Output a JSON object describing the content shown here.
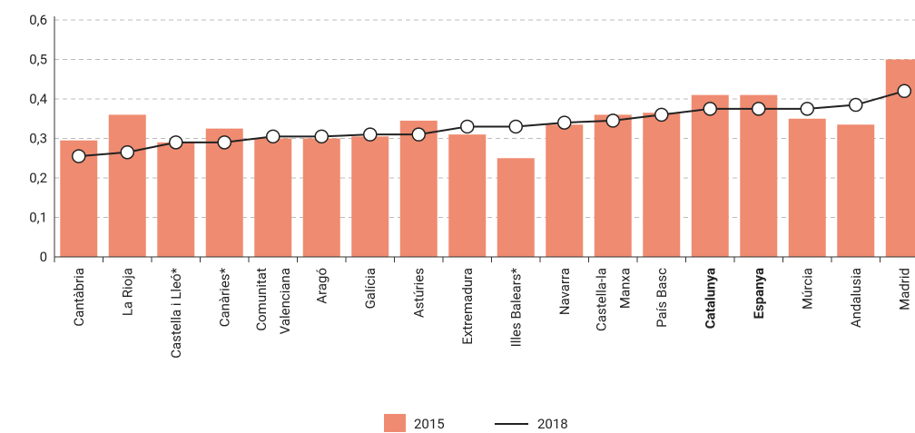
{
  "chart_data": {
    "type": "bar_line",
    "categories": [
      "Cantàbria",
      "La Rioja",
      "Castella i Lleó*",
      "Canàries*",
      "Comunitat\nValenciana",
      "Aragó",
      "Galícia",
      "Astúries",
      "Extremadura",
      "Illes Balears*",
      "Navarra",
      "Castella-la\nManxa",
      "País Basc",
      "Catalunya",
      "Espanya",
      "Múrcia",
      "Andalusia",
      "Madrid"
    ],
    "bold_categories": [
      13,
      14
    ],
    "series": [
      {
        "name": "2015",
        "type": "bar",
        "color": "#ef8b70",
        "values": [
          0.295,
          0.36,
          0.29,
          0.325,
          0.3,
          0.3,
          0.305,
          0.345,
          0.31,
          0.25,
          0.335,
          0.36,
          0.365,
          0.41,
          0.41,
          0.35,
          0.335,
          0.5
        ]
      },
      {
        "name": "2018",
        "type": "line",
        "color": "#222222",
        "values": [
          0.255,
          0.265,
          0.29,
          0.29,
          0.305,
          0.305,
          0.31,
          0.31,
          0.33,
          0.33,
          0.34,
          0.345,
          0.36,
          0.375,
          0.375,
          0.375,
          0.385,
          0.42
        ]
      }
    ],
    "ylim": [
      0,
      0.6
    ],
    "yticks": [
      0,
      {
        "value": 0.1,
        "label": "0,1"
      },
      {
        "value": 0.2,
        "label": "0,2"
      },
      {
        "value": 0.3,
        "label": "0,3"
      },
      {
        "value": 0.4,
        "label": "0,4"
      },
      {
        "value": 0.5,
        "label": "0,5"
      },
      {
        "value": 0.6,
        "label": "0,6"
      }
    ],
    "grid": true,
    "legend": "bottom"
  }
}
